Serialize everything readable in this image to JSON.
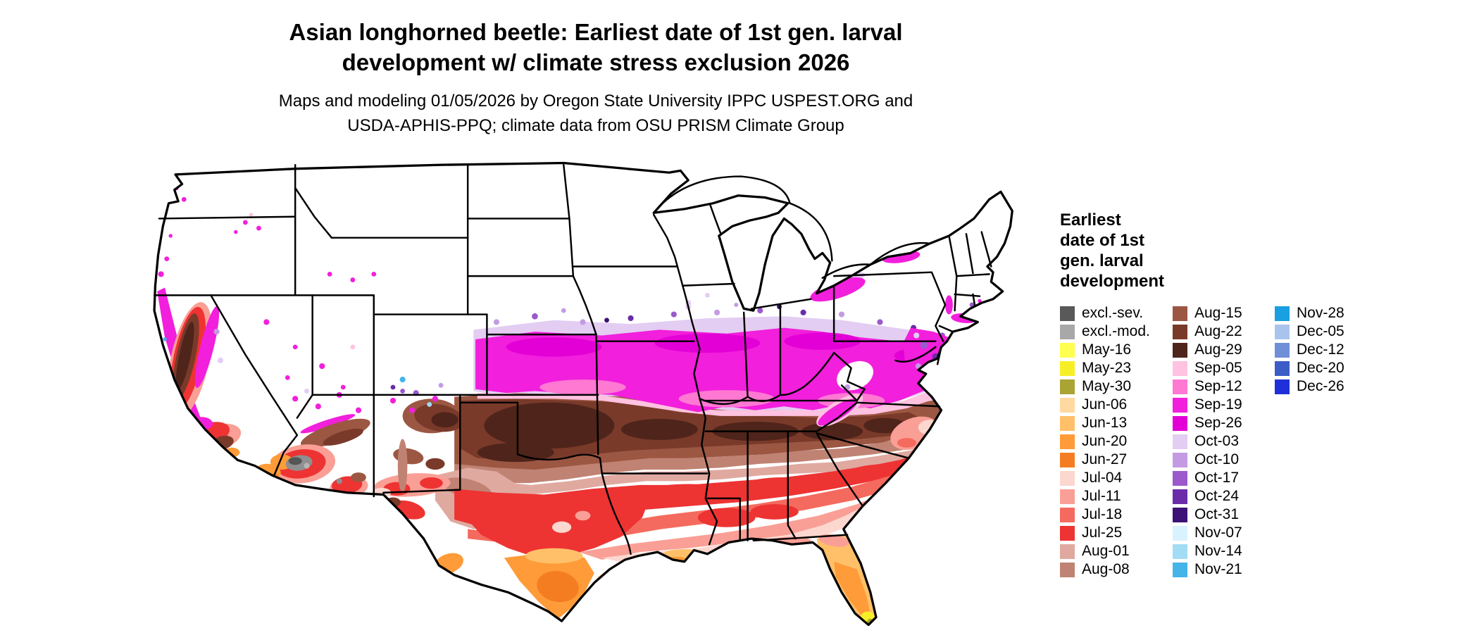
{
  "title": {
    "line1": "Asian longhorned beetle: Earliest date of 1st gen. larval",
    "line2": "development w/ climate stress exclusion 2026"
  },
  "subtitle": {
    "line1": "Maps and modeling 01/05/2026 by Oregon State University IPPC USPEST.ORG and",
    "line2": "USDA-APHIS-PPQ; climate data from OSU PRISM Climate Group"
  },
  "legend": {
    "title_lines": [
      "Earliest",
      "date of 1st",
      "gen. larval",
      "development"
    ],
    "columns": [
      [
        {
          "label": "excl.-sev.",
          "color": "#595959"
        },
        {
          "label": "excl.-mod.",
          "color": "#a8a8a8"
        },
        {
          "label": "May-16",
          "color": "#ffff4f"
        },
        {
          "label": "May-23",
          "color": "#f7ef26"
        },
        {
          "label": "May-30",
          "color": "#a9a433"
        },
        {
          "label": "Jun-06",
          "color": "#ffd9a0"
        },
        {
          "label": "Jun-13",
          "color": "#ffc069"
        },
        {
          "label": "Jun-20",
          "color": "#ff9b38"
        },
        {
          "label": "Jun-27",
          "color": "#f57d21"
        },
        {
          "label": "Jul-04",
          "color": "#fcd7cf"
        },
        {
          "label": "Jul-11",
          "color": "#fa9f96"
        },
        {
          "label": "Jul-18",
          "color": "#f56a5e"
        },
        {
          "label": "Jul-25",
          "color": "#ee3333"
        },
        {
          "label": "Aug-01",
          "color": "#e0a9a0"
        },
        {
          "label": "Aug-08",
          "color": "#c08373"
        }
      ],
      [
        {
          "label": "Aug-15",
          "color": "#9c5743"
        },
        {
          "label": "Aug-22",
          "color": "#7a3a2a"
        },
        {
          "label": "Aug-29",
          "color": "#4f241b"
        },
        {
          "label": "Sep-05",
          "color": "#ffc2e0"
        },
        {
          "label": "Sep-12",
          "color": "#ff78d2"
        },
        {
          "label": "Sep-19",
          "color": "#f21fdc"
        },
        {
          "label": "Sep-26",
          "color": "#e300d6"
        },
        {
          "label": "Oct-03",
          "color": "#e3cdf2"
        },
        {
          "label": "Oct-10",
          "color": "#c49be3"
        },
        {
          "label": "Oct-17",
          "color": "#9b59cc"
        },
        {
          "label": "Oct-24",
          "color": "#6a2ca8"
        },
        {
          "label": "Oct-31",
          "color": "#3d1175"
        },
        {
          "label": "Nov-07",
          "color": "#d9f2ff"
        },
        {
          "label": "Nov-14",
          "color": "#a3dcf5"
        },
        {
          "label": "Nov-21",
          "color": "#45b4e8"
        }
      ],
      [
        {
          "label": "Nov-28",
          "color": "#18a0e0"
        },
        {
          "label": "Dec-05",
          "color": "#a8c4ed"
        },
        {
          "label": "Dec-12",
          "color": "#6f8fd9"
        },
        {
          "label": "Dec-20",
          "color": "#3c5cc7"
        },
        {
          "label": "Dec-26",
          "color": "#1f2fd9"
        }
      ]
    ]
  }
}
